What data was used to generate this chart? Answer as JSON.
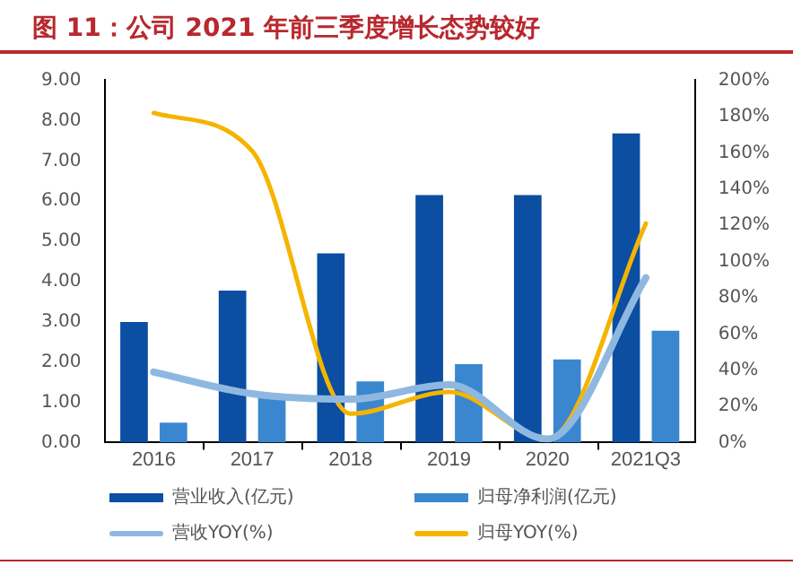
{
  "chart_data": {
    "type": "bar",
    "title": "图 11：公司 2021 年前三季度增长态势较好",
    "categories": [
      "2016",
      "2017",
      "2018",
      "2019",
      "2020",
      "2021Q3"
    ],
    "series": [
      {
        "name": "营业收入(亿元)",
        "color": "#0b4ea2",
        "values": [
          3.0,
          3.78,
          4.7,
          6.15,
          6.15,
          7.68
        ]
      },
      {
        "name": "归母净利润(亿元)",
        "color": "#3a87d0",
        "values": [
          0.5,
          1.2,
          1.52,
          1.95,
          2.07,
          2.78
        ]
      },
      {
        "name": "营收YOY(%)",
        "type": "line",
        "axis": "y2",
        "color": "#8fb8e0",
        "values": [
          39,
          27,
          24,
          32,
          2,
          91
        ]
      },
      {
        "name": "归母YOY(%)",
        "type": "line",
        "axis": "y2",
        "color": "#f5b400",
        "values": [
          182,
          161,
          16,
          28,
          2,
          121
        ]
      }
    ],
    "ylim": [
      0,
      9
    ],
    "yticks": [
      {
        "value": 0,
        "label": "0.00"
      },
      {
        "value": 1,
        "label": "1.00"
      },
      {
        "value": 2,
        "label": "2.00"
      },
      {
        "value": 3,
        "label": "3.00"
      },
      {
        "value": 4,
        "label": "4.00"
      },
      {
        "value": 5,
        "label": "5.00"
      },
      {
        "value": 6,
        "label": "6.00"
      },
      {
        "value": 7,
        "label": "7.00"
      },
      {
        "value": 8,
        "label": "8.00"
      },
      {
        "value": 9,
        "label": "9.00"
      }
    ],
    "y2lim": [
      0,
      200
    ],
    "y2ticks": [
      {
        "value": 0,
        "label": "0%"
      },
      {
        "value": 20,
        "label": "20%"
      },
      {
        "value": 40,
        "label": "40%"
      },
      {
        "value": 60,
        "label": "60%"
      },
      {
        "value": 80,
        "label": "80%"
      },
      {
        "value": 100,
        "label": "100%"
      },
      {
        "value": 120,
        "label": "120%"
      },
      {
        "value": 140,
        "label": "140%"
      },
      {
        "value": 160,
        "label": "160%"
      },
      {
        "value": 180,
        "label": "180%"
      },
      {
        "value": 200,
        "label": "200%"
      }
    ],
    "grid": false,
    "legend": "bottom",
    "marker": "none"
  }
}
